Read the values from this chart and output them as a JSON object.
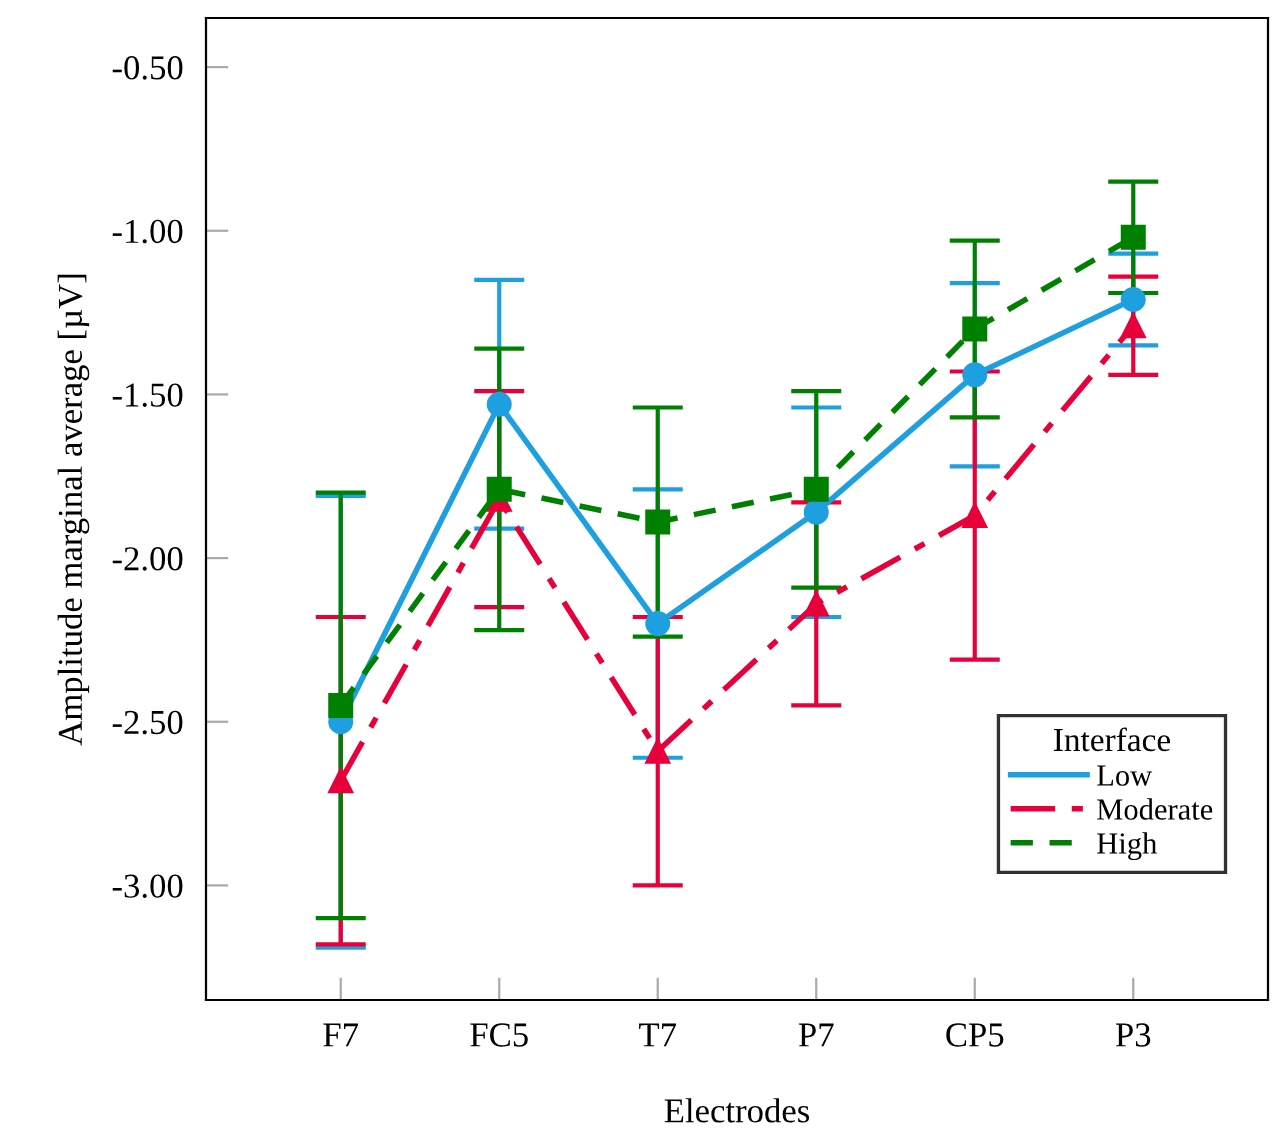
{
  "chart_data": {
    "type": "line",
    "xlabel": "Electrodes",
    "ylabel": "Amplitude marginal average [µV]",
    "legend_title": "Interface",
    "categories": [
      "F7",
      "FC5",
      "T7",
      "P7",
      "CP5",
      "P3"
    ],
    "series": [
      {
        "name": "Low",
        "color": "#1e9fe0",
        "values": [
          -2.5,
          -1.53,
          -2.2,
          -1.86,
          -1.44,
          -1.21
        ],
        "errors": [
          0.69,
          0.38,
          0.41,
          0.32,
          0.28,
          0.14
        ],
        "marker": "circle",
        "line_style": "solid"
      },
      {
        "name": "Moderate",
        "color": "#e8003a",
        "values": [
          -2.68,
          -1.82,
          -2.59,
          -2.14,
          -1.87,
          -1.29
        ],
        "errors": [
          0.5,
          0.33,
          0.41,
          0.31,
          0.44,
          0.15
        ],
        "marker": "triangle",
        "line_style": "dashdot"
      },
      {
        "name": "High",
        "color": "#008000",
        "values": [
          -2.45,
          -1.79,
          -1.89,
          -1.79,
          -1.3,
          -1.02
        ],
        "errors": [
          0.65,
          0.43,
          0.35,
          0.3,
          0.27,
          0.17
        ],
        "marker": "square",
        "line_style": "dashed"
      }
    ],
    "ylim": [
      -3.35,
      -0.35
    ],
    "yticks": [
      {
        "value": -3.0,
        "label": "-3.00"
      },
      {
        "value": -2.5,
        "label": "-2.50"
      },
      {
        "value": -2.0,
        "label": "-2.00"
      },
      {
        "value": -1.5,
        "label": "-1.50"
      },
      {
        "value": -1.0,
        "label": "-1.00"
      },
      {
        "value": -0.5,
        "label": "-0.50"
      }
    ],
    "grid": false,
    "legend": "bottom right"
  }
}
